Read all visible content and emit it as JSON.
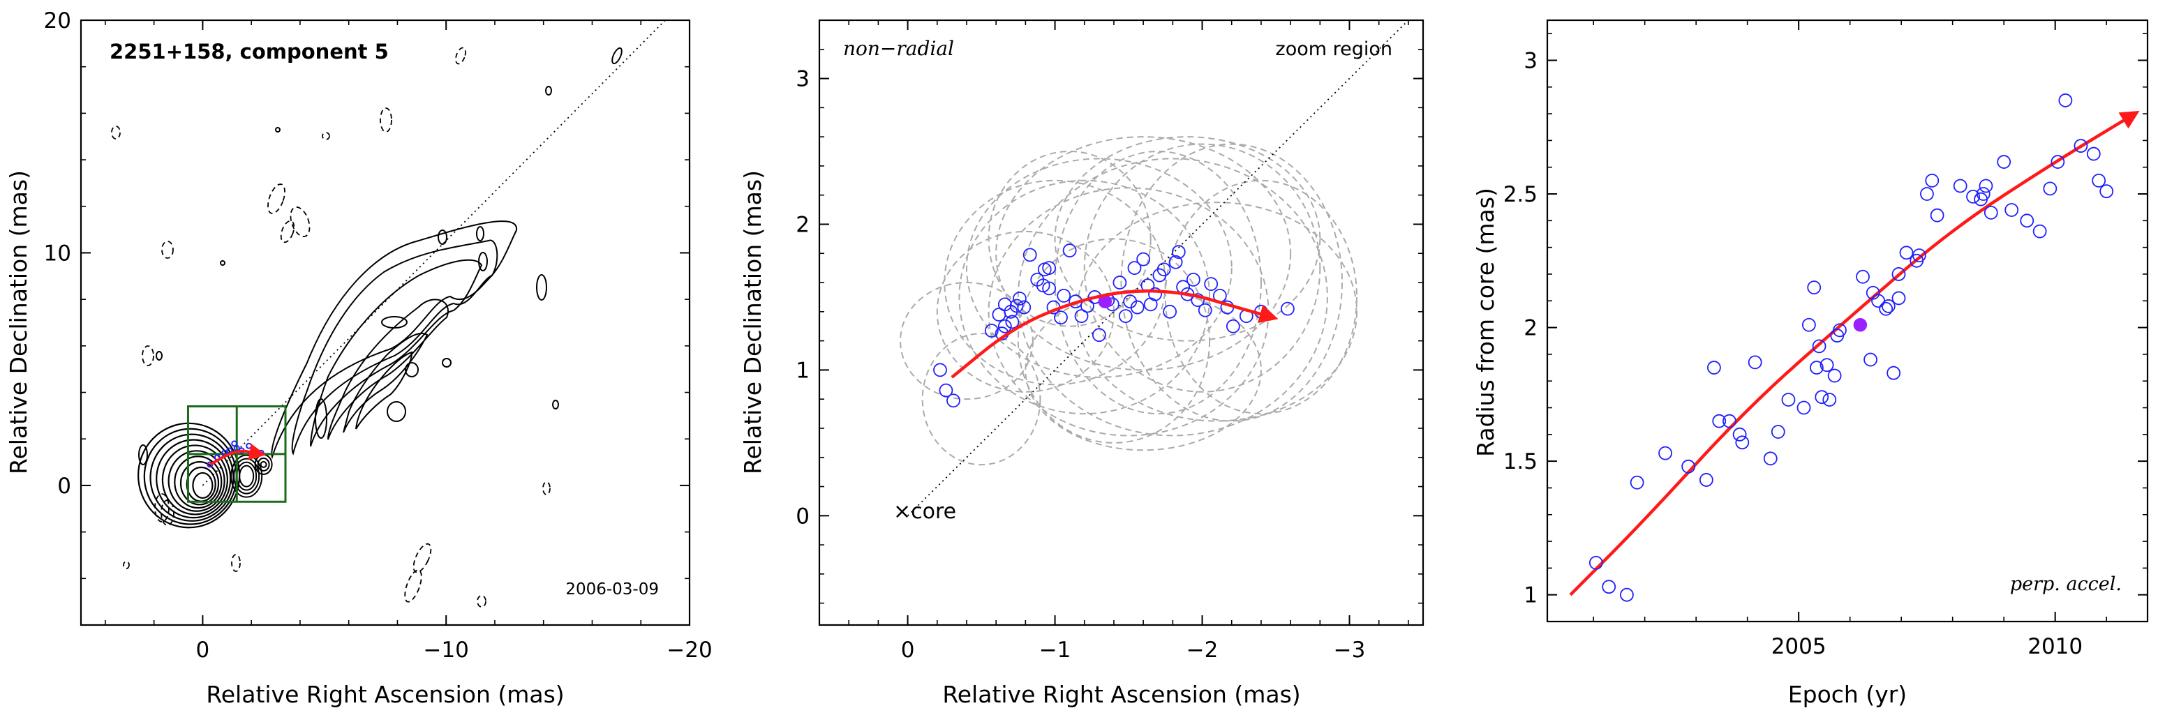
{
  "chart_data": [
    {
      "type": "contour",
      "title": "2251+158, component 5",
      "date": "2006-03-09",
      "xlabel": "Relative Right Ascension (mas)",
      "ylabel": "Relative Declination (mas)",
      "xlim": [
        5,
        -20
      ],
      "ylim": [
        -6,
        20
      ],
      "x_ticks": [
        0,
        -10,
        -20
      ],
      "y_ticks": [
        0,
        10,
        20
      ],
      "x_tick_labels": [
        "0",
        "−10",
        "−20"
      ],
      "y_tick_labels": [
        "0",
        "10",
        "20"
      ],
      "jet_direction_line": [
        [
          0,
          0
        ],
        [
          -19,
          20
        ]
      ],
      "zoom_box": {
        "x": [
          0.6,
          -3.4
        ],
        "y": [
          -0.7,
          3.4
        ]
      },
      "track_points": [
        [
          -0.3,
          0.9
        ],
        [
          -0.6,
          1.2
        ],
        [
          -0.9,
          1.4
        ],
        [
          -1.1,
          1.5
        ],
        [
          -1.4,
          1.6
        ],
        [
          -1.6,
          1.5
        ],
        [
          -1.9,
          1.7
        ],
        [
          -2.1,
          1.5
        ],
        [
          -2.4,
          1.4
        ],
        [
          -1.3,
          1.8
        ]
      ],
      "accel_vector": [
        [
          -0.3,
          0.9
        ],
        [
          -1.4,
          1.55
        ],
        [
          -2.4,
          1.35
        ]
      ],
      "colors": {
        "contour": "#000000",
        "box": "#1a6b1a",
        "points": "#2020ff",
        "vector": "#ff1a1a",
        "guide": "#000000"
      }
    },
    {
      "type": "scatter",
      "corner_labels": {
        "top_left": "non−radial",
        "top_right": "zoom region"
      },
      "core_label": "×core",
      "xlabel": "Relative Right Ascension (mas)",
      "ylabel": "Relative Declination (mas)",
      "xlim": [
        0.6,
        -3.5
      ],
      "ylim": [
        -0.75,
        3.4
      ],
      "x_ticks": [
        0,
        -1,
        -2,
        -3
      ],
      "y_ticks": [
        0,
        1,
        2,
        3
      ],
      "x_tick_labels": [
        "0",
        "−1",
        "−2",
        "−3"
      ],
      "y_tick_labels": [
        "0",
        "1",
        "2",
        "3"
      ],
      "core": [
        0,
        0
      ],
      "guide_line": [
        [
          0,
          0
        ],
        [
          -3.4,
          3.4
        ]
      ],
      "points": [
        [
          -0.22,
          1.0
        ],
        [
          -0.26,
          0.86
        ],
        [
          -0.31,
          0.79
        ],
        [
          -0.57,
          1.27
        ],
        [
          -0.64,
          1.25
        ],
        [
          -0.66,
          1.3
        ],
        [
          -0.62,
          1.38
        ],
        [
          -0.66,
          1.45
        ],
        [
          -0.7,
          1.4
        ],
        [
          -0.71,
          1.33
        ],
        [
          -0.74,
          1.44
        ],
        [
          -0.76,
          1.49
        ],
        [
          -0.79,
          1.43
        ],
        [
          -0.83,
          1.79
        ],
        [
          -0.88,
          1.62
        ],
        [
          -0.92,
          1.58
        ],
        [
          -0.93,
          1.69
        ],
        [
          -0.96,
          1.56
        ],
        [
          -0.99,
          1.43
        ],
        [
          -1.04,
          1.36
        ],
        [
          -1.06,
          1.51
        ],
        [
          -1.1,
          1.82
        ],
        [
          -1.14,
          1.47
        ],
        [
          -1.18,
          1.37
        ],
        [
          -1.22,
          1.44
        ],
        [
          -1.27,
          1.5
        ],
        [
          -1.3,
          1.24
        ],
        [
          -1.36,
          1.48
        ],
        [
          -1.39,
          1.45
        ],
        [
          -1.44,
          1.6
        ],
        [
          -1.48,
          1.37
        ],
        [
          -1.51,
          1.47
        ],
        [
          -1.56,
          1.43
        ],
        [
          -1.6,
          1.76
        ],
        [
          -1.63,
          1.58
        ],
        [
          -1.65,
          1.45
        ],
        [
          -1.68,
          1.52
        ],
        [
          -1.71,
          1.65
        ],
        [
          -1.74,
          1.69
        ],
        [
          -1.78,
          1.4
        ],
        [
          -1.82,
          1.74
        ],
        [
          -1.84,
          1.81
        ],
        [
          -1.87,
          1.57
        ],
        [
          -1.9,
          1.52
        ],
        [
          -1.94,
          1.62
        ],
        [
          -1.97,
          1.48
        ],
        [
          -2.02,
          1.41
        ],
        [
          -2.06,
          1.59
        ],
        [
          -2.12,
          1.51
        ],
        [
          -2.17,
          1.43
        ],
        [
          -2.21,
          1.3
        ],
        [
          -2.3,
          1.37
        ],
        [
          -2.4,
          1.4
        ],
        [
          -2.58,
          1.42
        ],
        [
          -0.96,
          1.7
        ],
        [
          -1.54,
          1.7
        ]
      ],
      "mean_point": [
        -1.34,
        1.47
      ],
      "beams": [
        [
          -0.4,
          1.2,
          0.45,
          0.4
        ],
        [
          -0.5,
          0.8,
          0.4,
          0.45
        ],
        [
          -0.8,
          1.4,
          0.6,
          0.55
        ],
        [
          -1.0,
          1.6,
          0.75,
          0.7
        ],
        [
          -1.2,
          1.5,
          0.85,
          0.8
        ],
        [
          -1.3,
          1.7,
          0.9,
          0.75
        ],
        [
          -1.5,
          1.4,
          0.95,
          0.85
        ],
        [
          -1.6,
          1.8,
          1.0,
          0.8
        ],
        [
          -1.8,
          1.5,
          1.05,
          0.95
        ],
        [
          -1.7,
          1.6,
          0.7,
          0.9
        ],
        [
          -2.0,
          1.7,
          0.8,
          0.85
        ],
        [
          -2.1,
          1.4,
          0.95,
          0.75
        ],
        [
          -1.4,
          1.2,
          0.65,
          0.7
        ],
        [
          -1.9,
          1.9,
          0.9,
          0.7
        ],
        [
          -2.2,
          1.6,
          0.75,
          0.95
        ],
        [
          -1.1,
          1.9,
          0.55,
          0.6
        ],
        [
          -2.4,
          1.5,
          0.65,
          0.8
        ],
        [
          -1.6,
          1.0,
          0.8,
          0.55
        ]
      ],
      "accel_curve": [
        [
          -0.3,
          0.95
        ],
        [
          -0.7,
          1.28
        ],
        [
          -1.1,
          1.46
        ],
        [
          -1.5,
          1.55
        ],
        [
          -1.9,
          1.53
        ],
        [
          -2.2,
          1.44
        ],
        [
          -2.48,
          1.36
        ]
      ],
      "colors": {
        "points": "#2020ff",
        "mean": "#9a20ff",
        "beams": "#aaaaaa",
        "curve": "#ff1a1a",
        "guide": "#000000"
      }
    },
    {
      "type": "scatter",
      "corner_label": "perp. accel.",
      "xlabel": "Epoch (yr)",
      "ylabel": "Radius from core (mas)",
      "xlim": [
        2000.1,
        2011.8
      ],
      "ylim": [
        0.9,
        3.15
      ],
      "x_ticks": [
        2005,
        2010
      ],
      "y_ticks": [
        1,
        1.5,
        2,
        2.5,
        3
      ],
      "x_tick_labels": [
        "2005",
        "2010"
      ],
      "y_tick_labels": [
        "1",
        "1.5",
        "2",
        "2.5",
        "3"
      ],
      "points": [
        [
          2001.05,
          1.12
        ],
        [
          2001.3,
          1.03
        ],
        [
          2001.65,
          1.0
        ],
        [
          2001.85,
          1.42
        ],
        [
          2002.4,
          1.53
        ],
        [
          2002.85,
          1.48
        ],
        [
          2003.2,
          1.43
        ],
        [
          2003.35,
          1.85
        ],
        [
          2003.45,
          1.65
        ],
        [
          2003.65,
          1.65
        ],
        [
          2003.85,
          1.6
        ],
        [
          2003.9,
          1.57
        ],
        [
          2004.15,
          1.87
        ],
        [
          2004.45,
          1.51
        ],
        [
          2004.6,
          1.61
        ],
        [
          2004.8,
          1.73
        ],
        [
          2005.1,
          1.7
        ],
        [
          2005.2,
          2.01
        ],
        [
          2005.3,
          2.15
        ],
        [
          2005.35,
          1.85
        ],
        [
          2005.4,
          1.93
        ],
        [
          2005.45,
          1.74
        ],
        [
          2005.55,
          1.86
        ],
        [
          2005.6,
          1.73
        ],
        [
          2005.7,
          1.82
        ],
        [
          2005.75,
          1.97
        ],
        [
          2005.8,
          1.99
        ],
        [
          2006.25,
          2.19
        ],
        [
          2006.4,
          1.88
        ],
        [
          2006.45,
          2.13
        ],
        [
          2006.55,
          2.1
        ],
        [
          2006.7,
          2.07
        ],
        [
          2006.75,
          2.08
        ],
        [
          2006.95,
          2.11
        ],
        [
          2006.85,
          1.83
        ],
        [
          2006.95,
          2.2
        ],
        [
          2007.1,
          2.28
        ],
        [
          2007.3,
          2.25
        ],
        [
          2007.35,
          2.27
        ],
        [
          2007.5,
          2.5
        ],
        [
          2007.6,
          2.55
        ],
        [
          2007.7,
          2.42
        ],
        [
          2008.15,
          2.53
        ],
        [
          2008.4,
          2.49
        ],
        [
          2008.55,
          2.48
        ],
        [
          2008.6,
          2.5
        ],
        [
          2008.65,
          2.53
        ],
        [
          2008.75,
          2.43
        ],
        [
          2009.0,
          2.62
        ],
        [
          2009.15,
          2.44
        ],
        [
          2009.45,
          2.4
        ],
        [
          2009.7,
          2.36
        ],
        [
          2009.9,
          2.52
        ],
        [
          2010.05,
          2.62
        ],
        [
          2010.2,
          2.85
        ],
        [
          2010.5,
          2.68
        ],
        [
          2010.75,
          2.65
        ],
        [
          2010.85,
          2.55
        ],
        [
          2011.0,
          2.51
        ]
      ],
      "mean_point": [
        2006.2,
        2.01
      ],
      "fit_curve": [
        [
          2000.55,
          1.0
        ],
        [
          2002.0,
          1.28
        ],
        [
          2004.0,
          1.7
        ],
        [
          2006.0,
          2.04
        ],
        [
          2008.0,
          2.37
        ],
        [
          2010.0,
          2.62
        ],
        [
          2011.55,
          2.8
        ]
      ],
      "colors": {
        "points": "#2020ff",
        "mean": "#9a20ff",
        "curve": "#ff1a1a"
      }
    }
  ]
}
